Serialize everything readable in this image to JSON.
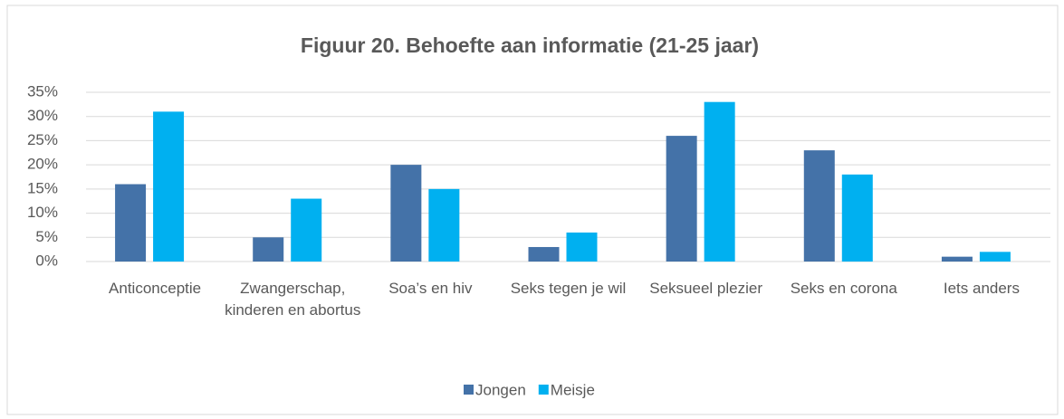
{
  "chart_data": {
    "type": "bar",
    "title": "Figuur 20. Behoefte aan informatie (21-25 jaar)",
    "categories": [
      "Anticonceptie",
      "Zwangerschap, kinderen en abortus",
      "Soa’s en hiv",
      "Seks tegen je wil",
      "Seksueel plezier",
      "Seks en corona",
      "Iets anders"
    ],
    "series": [
      {
        "name": "Jongen",
        "color": "#4472a8",
        "values": [
          16,
          5,
          20,
          3,
          26,
          23,
          1
        ]
      },
      {
        "name": "Meisje",
        "color": "#00b0f0",
        "values": [
          31,
          13,
          15,
          6,
          33,
          18,
          2
        ]
      }
    ],
    "ylim": [
      0,
      35
    ],
    "yticks": [
      {
        "value": 0,
        "label": "0%"
      },
      {
        "value": 5,
        "label": "5%"
      },
      {
        "value": 10,
        "label": "10%"
      },
      {
        "value": 15,
        "label": "15%"
      },
      {
        "value": 20,
        "label": "20%"
      },
      {
        "value": 25,
        "label": "25%"
      },
      {
        "value": 30,
        "label": "30%"
      },
      {
        "value": 35,
        "label": "35%"
      }
    ],
    "grid": true,
    "legend": "bottom"
  }
}
